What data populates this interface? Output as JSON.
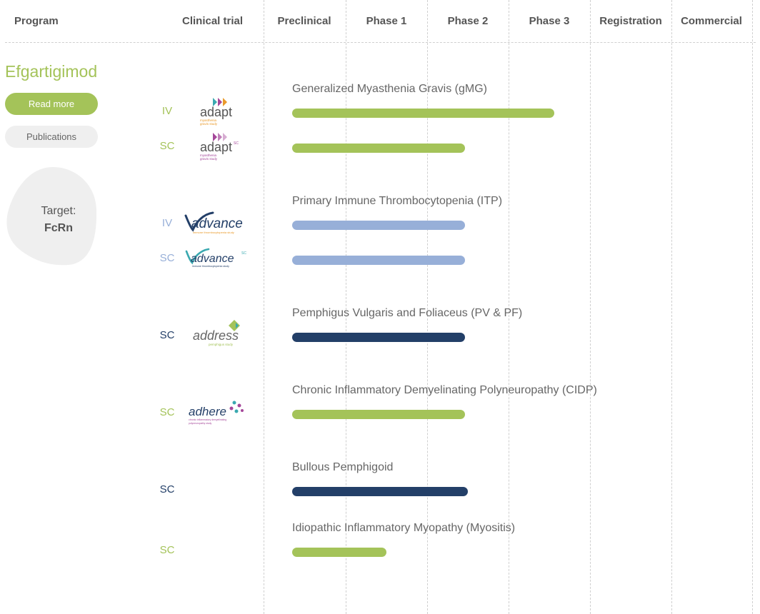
{
  "header": {
    "program": "Program",
    "clinical_trial": "Clinical trial",
    "phases": [
      "Preclinical",
      "Phase 1",
      "Phase 2",
      "Phase 3",
      "Registration",
      "Commercial"
    ]
  },
  "program": {
    "name": "Efgartigimod",
    "read_more": "Read more",
    "publications": "Publications",
    "target_label": "Target:",
    "target_value": "FcRn"
  },
  "colors": {
    "green": "#a4c359",
    "light_blue": "#97afd8",
    "navy": "#233f68",
    "purple": "#a5479a",
    "teal": "#3aa9b0",
    "orange": "#e99a2b"
  },
  "phase_scale": "0 = start of Preclinical, 1 = end of Phase 1, 2 = end of Phase 2, 3 = end of Phase 3, 4 = end of Registration",
  "rows": [
    {
      "route": "IV",
      "route_color": "green",
      "logo": {
        "word": "adapt",
        "sub": "myasthenia gravis study",
        "icon": "chevron-arrows-icon"
      },
      "progress": 4.0,
      "bar_color": "green"
    },
    {
      "route": "SC",
      "route_color": "green",
      "logo": {
        "word": "adapt",
        "sup": "SC",
        "sub": "myasthenia gravis study",
        "icon": "chevron-arrows-icon"
      },
      "progress": 3.0,
      "bar_color": "green"
    },
    {
      "route": "IV",
      "route_color": "light_blue",
      "logo": {
        "word": "advance",
        "sub": "immune thrombocytopenia study",
        "icon": "checkmark-swoosh-icon"
      },
      "progress": 3.0,
      "bar_color": "light_blue"
    },
    {
      "route": "SC",
      "route_color": "light_blue",
      "logo": {
        "word": "advance",
        "sup": "SC",
        "sub": "immune thrombocytopenia study",
        "icon": "checkmark-swoosh-icon"
      },
      "progress": 3.0,
      "bar_color": "light_blue"
    },
    {
      "route": "SC",
      "route_color": "navy",
      "logo": {
        "word": "address",
        "sub": "pemphigus study",
        "icon": "diamond-arrow-icon"
      },
      "progress": 3.0,
      "bar_color": "navy"
    },
    {
      "route": "SC",
      "route_color": "green",
      "logo": {
        "word": "adhere",
        "sub": "chronic inflammatory demyelinating polyneuropathy study",
        "icon": "dots-molecule-icon"
      },
      "progress": 3.0,
      "bar_color": "green"
    },
    {
      "route": "SC",
      "route_color": "navy",
      "progress": 2.5,
      "bar_color": "navy"
    },
    {
      "route": "SC",
      "route_color": "green",
      "progress": 1.5,
      "bar_color": "green"
    }
  ],
  "indications": [
    "Generalized Myasthenia Gravis (gMG)",
    "Primary Immune Thrombocytopenia (ITP)",
    "Pemphigus Vulgaris and Foliaceus (PV & PF)",
    "Chronic Inflammatory Demyelinating Polyneuropathy (CIDP)",
    "Bullous Pemphigoid",
    "Idiopathic Inflammatory Myopathy (Myositis)"
  ]
}
